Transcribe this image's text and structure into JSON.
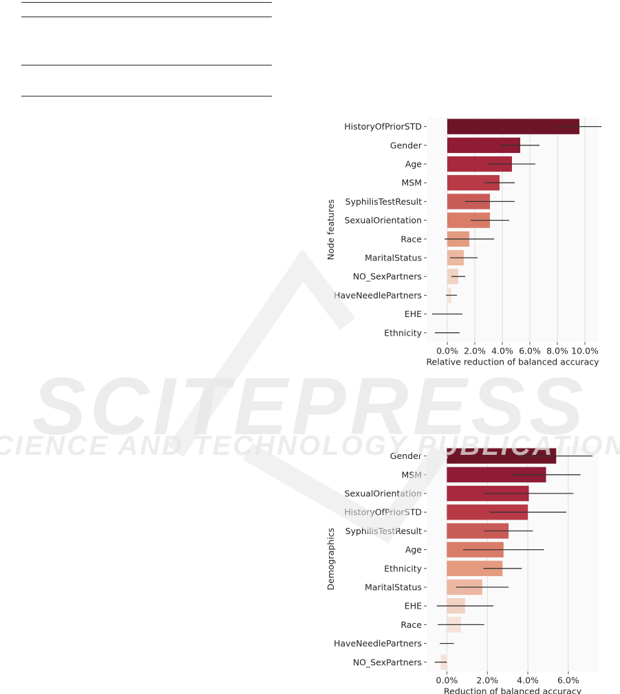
{
  "watermark": {
    "title": "SCITEPRESS",
    "subtitle": "SCIENCE AND TECHNOLOGY PUBLICATIONS"
  },
  "colors": {
    "watermark": "#e6e6e6",
    "grid": "#dcdcdc",
    "errorbar": "#333333",
    "palette": [
      "#6e1427",
      "#8f1c34",
      "#a8293d",
      "#b83a46",
      "#c95b57",
      "#d97c68",
      "#e49b80",
      "#ecb8a1",
      "#f2d2c2",
      "#f6e2d8"
    ]
  },
  "chart_data": [
    {
      "type": "bar",
      "orientation": "horizontal",
      "xlabel": "Relative reduction of balanced accuracy",
      "ylabel": "Node features",
      "xlim": [
        -1.5,
        11.0
      ],
      "xticks": [
        0,
        2,
        4,
        6,
        8,
        10
      ],
      "tick_labels": [
        "0.0%",
        "2.0%",
        "4.0%",
        "6.0%",
        "8.0%",
        "10.0%"
      ],
      "grid": true,
      "categories": [
        "HistoryOfPriorSTD",
        "Gender",
        "Age",
        "MSM",
        "SyphilisTestResult",
        "SexualOrientation",
        "Race",
        "MaritalStatus",
        "NO_SexPartners",
        "HaveNeedlePartners",
        "EHE",
        "Ethnicity"
      ],
      "values": [
        9.6,
        5.3,
        4.7,
        3.8,
        3.1,
        3.1,
        1.6,
        1.2,
        0.8,
        0.3,
        0.0,
        0.0
      ],
      "errors": [
        1.6,
        1.4,
        1.7,
        1.1,
        1.8,
        1.4,
        1.8,
        1.0,
        0.5,
        0.4,
        1.1,
        0.9
      ]
    },
    {
      "type": "bar",
      "orientation": "horizontal",
      "xlabel": "Reduction of balanced accuracy",
      "ylabel": "Demographics",
      "xlim": [
        -1.0,
        7.5
      ],
      "xticks": [
        0,
        2,
        4,
        6
      ],
      "tick_labels": [
        "0.0%",
        "2.0%",
        "4.0%",
        "6.0%"
      ],
      "grid": true,
      "categories": [
        "Gender",
        "MSM",
        "SexualOrientation",
        "HistoryOfPriorSTD",
        "SyphilisTestResult",
        "Age",
        "Ethnicity",
        "MaritalStatus",
        "EHE",
        "Race",
        "HaveNeedlePartners",
        "NO_SexPartners"
      ],
      "values": [
        5.4,
        4.9,
        4.05,
        4.0,
        3.05,
        2.8,
        2.75,
        1.75,
        0.9,
        0.7,
        0.0,
        -0.3
      ],
      "errors": [
        1.8,
        1.7,
        2.2,
        1.9,
        1.2,
        2.0,
        0.95,
        1.3,
        1.4,
        1.15,
        0.35,
        0.3
      ]
    }
  ]
}
